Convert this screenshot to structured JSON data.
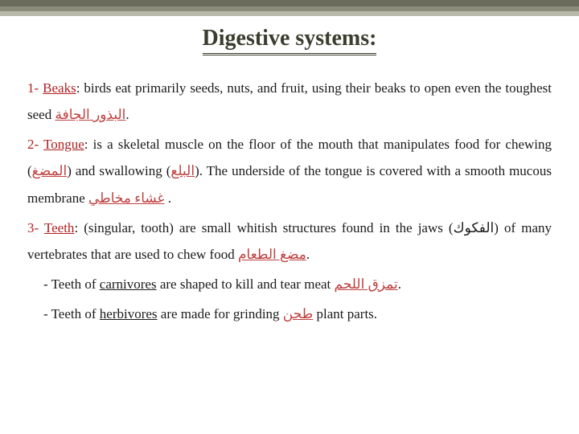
{
  "title": "Digestive systems:",
  "body": {
    "n1": "1-",
    "term1": "Beaks",
    "t1a": ": birds eat primarily seeds, nuts, and fruit, using their beaks to open even the toughest seed ",
    "ar1": "البذور الجافة",
    "t1b": ".",
    "n2": "2-",
    "term2": "Tongue",
    "t2a": ": is a skeletal muscle on the floor of the mouth that manipulates food for chewing (",
    "ar2a": "المضغ",
    "t2b": ") and swallowing (",
    "ar2b": "البلع",
    "t2c": "). The underside of the tongue is covered with a smooth mucous membrane ",
    "ar2c": "غشاء مخاطي",
    "t2d": " .",
    "n3": "3-",
    "term3": "Teeth",
    "t3a": ": (singular, tooth) are small whitish structures found in the jaws (",
    "ar3a": "الفكوك",
    "t3b": ") of many vertebrates that are used to chew food ",
    "ar3b": "مضغ الطعام",
    "t3c": ".",
    "sub1a": "- Teeth of ",
    "carn": "carnivores",
    "sub1b": "  are shaped to kill and tear meat  ",
    "ar4": "تمزق اللحم",
    "sub1c": ".",
    "sub2a": "- Teeth of ",
    "herb": "herbivores",
    "sub2b": "  are made for grinding ",
    "ar5": "طحن",
    "sub2c": "  plant parts."
  }
}
